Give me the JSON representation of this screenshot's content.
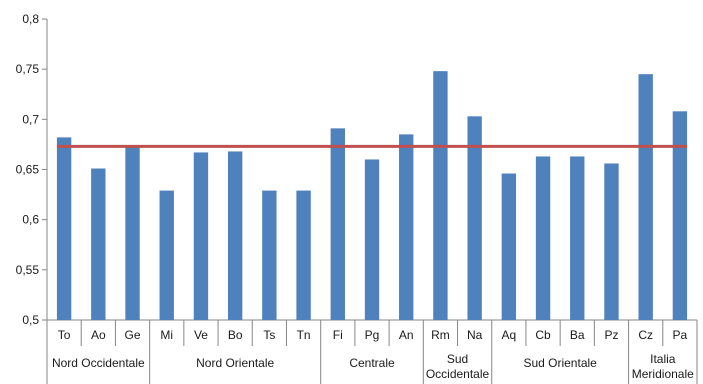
{
  "chart_data": {
    "type": "bar",
    "title": "",
    "xlabel": "",
    "ylabel": "",
    "ylim": [
      0.5,
      0.8
    ],
    "yticks": [
      0.5,
      0.55,
      0.6,
      0.65,
      0.7,
      0.75,
      0.8
    ],
    "ytick_labels": [
      "0,5",
      "0,55",
      "0,6",
      "0,65",
      "0,7",
      "0,75",
      "0,8"
    ],
    "grid": false,
    "legend": "none",
    "bar_color": "#4f81bd",
    "line_color": "#c0504d",
    "categories": [
      "To",
      "Ao",
      "Ge",
      "Mi",
      "Ve",
      "Bo",
      "Ts",
      "Tn",
      "Fi",
      "Pg",
      "An",
      "Rm",
      "Na",
      "Aq",
      "Cb",
      "Ba",
      "Pz",
      "Cz",
      "Pa"
    ],
    "values": [
      0.682,
      0.651,
      0.672,
      0.629,
      0.667,
      0.668,
      0.629,
      0.629,
      0.691,
      0.66,
      0.685,
      0.748,
      0.703,
      0.646,
      0.663,
      0.663,
      0.656,
      0.745,
      0.708
    ],
    "reference_line": {
      "value": 0.673
    },
    "groups": [
      {
        "label": "Nord Occidentale",
        "start": 0,
        "end": 2
      },
      {
        "label": "Nord Orientale",
        "start": 3,
        "end": 7
      },
      {
        "label": "Centrale",
        "start": 8,
        "end": 10
      },
      {
        "label": "Sud Occidentale",
        "start": 11,
        "end": 12
      },
      {
        "label": "Sud Orientale",
        "start": 13,
        "end": 16
      },
      {
        "label": "Italia Meridionale",
        "start": 17,
        "end": 18
      }
    ]
  }
}
